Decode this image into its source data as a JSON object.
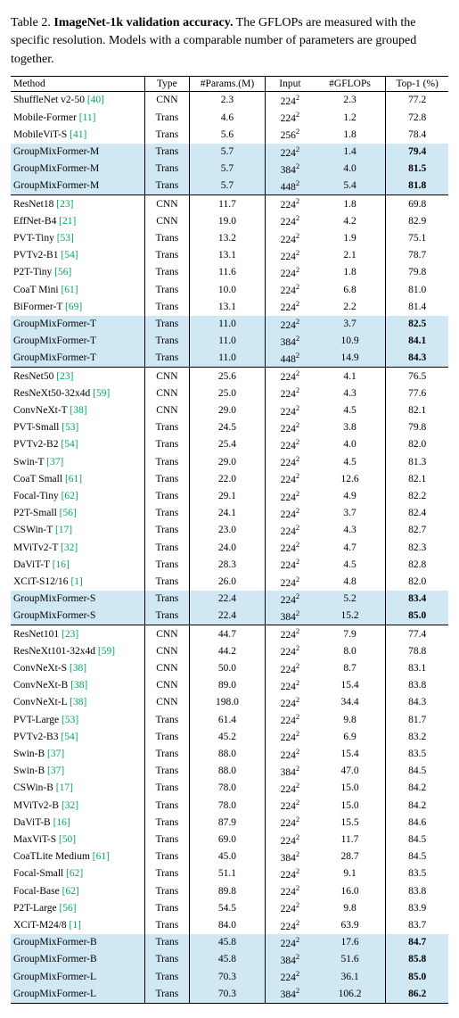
{
  "caption": {
    "table_num": "Table 2.",
    "title": "ImageNet-1k validation accuracy.",
    "rest": " The GFLOPs are measured with the specific resolution. Models with a comparable number of parameters are grouped together."
  },
  "colors": {
    "highlight_bg": "#cfe8f3",
    "cite_color": "#00aa55",
    "rule_color": "#000000",
    "background": "#ffffff",
    "text": "#000000"
  },
  "fonts": {
    "caption_size_pt": 10.5,
    "table_size_pt": 8.5,
    "family": "Times New Roman"
  },
  "headers": [
    "Method",
    "Type",
    "#Params.(M)",
    "Input",
    "#GFLOPs",
    "Top-1 (%)"
  ],
  "rows": [
    {
      "g": 1,
      "hl": 0,
      "b": 0,
      "method": "ShuffleNet v2-50",
      "cite": "[40]",
      "type": "CNN",
      "params": "2.3",
      "input": "224",
      "gflops": "2.3",
      "top1": "77.2"
    },
    {
      "g": 0,
      "hl": 0,
      "b": 0,
      "method": "Mobile-Former",
      "cite": "[11]",
      "type": "Trans",
      "params": "4.6",
      "input": "224",
      "gflops": "1.2",
      "top1": "72.8"
    },
    {
      "g": 0,
      "hl": 0,
      "b": 0,
      "method": "MobileViT-S",
      "cite": "[41]",
      "type": "Trans",
      "params": "5.6",
      "input": "256",
      "gflops": "1.8",
      "top1": "78.4"
    },
    {
      "g": 0,
      "hl": 1,
      "b": 1,
      "method": "GroupMixFormer-M",
      "cite": "",
      "type": "Trans",
      "params": "5.7",
      "input": "224",
      "gflops": "1.4",
      "top1": "79.4"
    },
    {
      "g": 0,
      "hl": 1,
      "b": 1,
      "method": "GroupMixFormer-M",
      "cite": "",
      "type": "Trans",
      "params": "5.7",
      "input": "384",
      "gflops": "4.0",
      "top1": "81.5"
    },
    {
      "g": 0,
      "hl": 1,
      "b": 1,
      "method": "GroupMixFormer-M",
      "cite": "",
      "type": "Trans",
      "params": "5.7",
      "input": "448",
      "gflops": "5.4",
      "top1": "81.8"
    },
    {
      "g": 1,
      "hl": 0,
      "b": 0,
      "method": "ResNet18",
      "cite": "[23]",
      "type": "CNN",
      "params": "11.7",
      "input": "224",
      "gflops": "1.8",
      "top1": "69.8"
    },
    {
      "g": 0,
      "hl": 0,
      "b": 0,
      "method": "EffNet-B4",
      "cite": "[21]",
      "type": "CNN",
      "params": "19.0",
      "input": "224",
      "gflops": "4.2",
      "top1": "82.9"
    },
    {
      "g": 0,
      "hl": 0,
      "b": 0,
      "method": "PVT-Tiny",
      "cite": "[53]",
      "type": "Trans",
      "params": "13.2",
      "input": "224",
      "gflops": "1.9",
      "top1": "75.1"
    },
    {
      "g": 0,
      "hl": 0,
      "b": 0,
      "method": "PVTv2-B1",
      "cite": "[54]",
      "type": "Trans",
      "params": "13.1",
      "input": "224",
      "gflops": "2.1",
      "top1": "78.7"
    },
    {
      "g": 0,
      "hl": 0,
      "b": 0,
      "method": "P2T-Tiny",
      "cite": "[56]",
      "type": "Trans",
      "params": "11.6",
      "input": "224",
      "gflops": "1.8",
      "top1": "79.8"
    },
    {
      "g": 0,
      "hl": 0,
      "b": 0,
      "method": "CoaT Mini",
      "cite": "[61]",
      "type": "Trans",
      "params": "10.0",
      "input": "224",
      "gflops": "6.8",
      "top1": "81.0"
    },
    {
      "g": 0,
      "hl": 0,
      "b": 0,
      "method": "BiFormer-T",
      "cite": "[69]",
      "type": "Trans",
      "params": "13.1",
      "input": "224",
      "gflops": "2.2",
      "top1": "81.4"
    },
    {
      "g": 0,
      "hl": 1,
      "b": 1,
      "method": "GroupMixFormer-T",
      "cite": "",
      "type": "Trans",
      "params": "11.0",
      "input": "224",
      "gflops": "3.7",
      "top1": "82.5"
    },
    {
      "g": 0,
      "hl": 1,
      "b": 1,
      "method": "GroupMixFormer-T",
      "cite": "",
      "type": "Trans",
      "params": "11.0",
      "input": "384",
      "gflops": "10.9",
      "top1": "84.1"
    },
    {
      "g": 0,
      "hl": 1,
      "b": 1,
      "method": "GroupMixFormer-T",
      "cite": "",
      "type": "Trans",
      "params": "11.0",
      "input": "448",
      "gflops": "14.9",
      "top1": "84.3"
    },
    {
      "g": 1,
      "hl": 0,
      "b": 0,
      "method": "ResNet50",
      "cite": "[23]",
      "type": "CNN",
      "params": "25.6",
      "input": "224",
      "gflops": "4.1",
      "top1": "76.5"
    },
    {
      "g": 0,
      "hl": 0,
      "b": 0,
      "method": "ResNeXt50-32x4d",
      "cite": "[59]",
      "type": "CNN",
      "params": "25.0",
      "input": "224",
      "gflops": "4.3",
      "top1": "77.6"
    },
    {
      "g": 0,
      "hl": 0,
      "b": 0,
      "method": "ConvNeXt-T",
      "cite": "[38]",
      "type": "CNN",
      "params": "29.0",
      "input": "224",
      "gflops": "4.5",
      "top1": "82.1"
    },
    {
      "g": 0,
      "hl": 0,
      "b": 0,
      "method": "PVT-Small",
      "cite": "[53]",
      "type": "Trans",
      "params": "24.5",
      "input": "224",
      "gflops": "3.8",
      "top1": "79.8"
    },
    {
      "g": 0,
      "hl": 0,
      "b": 0,
      "method": "PVTv2-B2",
      "cite": "[54]",
      "type": "Trans",
      "params": "25.4",
      "input": "224",
      "gflops": "4.0",
      "top1": "82.0"
    },
    {
      "g": 0,
      "hl": 0,
      "b": 0,
      "method": "Swin-T",
      "cite": "[37]",
      "type": "Trans",
      "params": "29.0",
      "input": "224",
      "gflops": "4.5",
      "top1": "81.3"
    },
    {
      "g": 0,
      "hl": 0,
      "b": 0,
      "method": "CoaT Small",
      "cite": "[61]",
      "type": "Trans",
      "params": "22.0",
      "input": "224",
      "gflops": "12.6",
      "top1": "82.1"
    },
    {
      "g": 0,
      "hl": 0,
      "b": 0,
      "method": "Focal-Tiny",
      "cite": "[62]",
      "type": "Trans",
      "params": "29.1",
      "input": "224",
      "gflops": "4.9",
      "top1": "82.2"
    },
    {
      "g": 0,
      "hl": 0,
      "b": 0,
      "method": "P2T-Small",
      "cite": "[56]",
      "type": "Trans",
      "params": "24.1",
      "input": "224",
      "gflops": "3.7",
      "top1": "82.4"
    },
    {
      "g": 0,
      "hl": 0,
      "b": 0,
      "method": "CSWin-T",
      "cite": "[17]",
      "type": "Trans",
      "params": "23.0",
      "input": "224",
      "gflops": "4.3",
      "top1": "82.7"
    },
    {
      "g": 0,
      "hl": 0,
      "b": 0,
      "method": "MViTv2-T",
      "cite": "[32]",
      "type": "Trans",
      "params": "24.0",
      "input": "224",
      "gflops": "4.7",
      "top1": "82.3"
    },
    {
      "g": 0,
      "hl": 0,
      "b": 0,
      "method": "DaViT-T",
      "cite": "[16]",
      "type": "Trans",
      "params": "28.3",
      "input": "224",
      "gflops": "4.5",
      "top1": "82.8"
    },
    {
      "g": 0,
      "hl": 0,
      "b": 0,
      "method": "XCiT-S12/16",
      "cite": "[1]",
      "type": "Trans",
      "params": "26.0",
      "input": "224",
      "gflops": "4.8",
      "top1": "82.0"
    },
    {
      "g": 0,
      "hl": 1,
      "b": 1,
      "method": "GroupMixFormer-S",
      "cite": "",
      "type": "Trans",
      "params": "22.4",
      "input": "224",
      "gflops": "5.2",
      "top1": "83.4"
    },
    {
      "g": 0,
      "hl": 1,
      "b": 1,
      "method": "GroupMixFormer-S",
      "cite": "",
      "type": "Trans",
      "params": "22.4",
      "input": "384",
      "gflops": "15.2",
      "top1": "85.0"
    },
    {
      "g": 1,
      "hl": 0,
      "b": 0,
      "method": "ResNet101",
      "cite": "[23]",
      "type": "CNN",
      "params": "44.7",
      "input": "224",
      "gflops": "7.9",
      "top1": "77.4"
    },
    {
      "g": 0,
      "hl": 0,
      "b": 0,
      "method": "ResNeXt101-32x4d",
      "cite": "[59]",
      "type": "CNN",
      "params": "44.2",
      "input": "224",
      "gflops": "8.0",
      "top1": "78.8"
    },
    {
      "g": 0,
      "hl": 0,
      "b": 0,
      "method": "ConvNeXt-S",
      "cite": "[38]",
      "type": "CNN",
      "params": "50.0",
      "input": "224",
      "gflops": "8.7",
      "top1": "83.1"
    },
    {
      "g": 0,
      "hl": 0,
      "b": 0,
      "method": "ConvNeXt-B",
      "cite": "[38]",
      "type": "CNN",
      "params": "89.0",
      "input": "224",
      "gflops": "15.4",
      "top1": "83.8"
    },
    {
      "g": 0,
      "hl": 0,
      "b": 0,
      "method": "ConvNeXt-L",
      "cite": "[38]",
      "type": "CNN",
      "params": "198.0",
      "input": "224",
      "gflops": "34.4",
      "top1": "84.3"
    },
    {
      "g": 0,
      "hl": 0,
      "b": 0,
      "method": "PVT-Large",
      "cite": "[53]",
      "type": "Trans",
      "params": "61.4",
      "input": "224",
      "gflops": "9.8",
      "top1": "81.7"
    },
    {
      "g": 0,
      "hl": 0,
      "b": 0,
      "method": "PVTv2-B3",
      "cite": "[54]",
      "type": "Trans",
      "params": "45.2",
      "input": "224",
      "gflops": "6.9",
      "top1": "83.2"
    },
    {
      "g": 0,
      "hl": 0,
      "b": 0,
      "method": "Swin-B",
      "cite": "[37]",
      "type": "Trans",
      "params": "88.0",
      "input": "224",
      "gflops": "15.4",
      "top1": "83.5"
    },
    {
      "g": 0,
      "hl": 0,
      "b": 0,
      "method": "Swin-B",
      "cite": "[37]",
      "type": "Trans",
      "params": "88.0",
      "input": "384",
      "gflops": "47.0",
      "top1": "84.5"
    },
    {
      "g": 0,
      "hl": 0,
      "b": 0,
      "method": "CSWin-B",
      "cite": "[17]",
      "type": "Trans",
      "params": "78.0",
      "input": "224",
      "gflops": "15.0",
      "top1": "84.2"
    },
    {
      "g": 0,
      "hl": 0,
      "b": 0,
      "method": "MViTv2-B",
      "cite": "[32]",
      "type": "Trans",
      "params": "78.0",
      "input": "224",
      "gflops": "15.0",
      "top1": "84.2"
    },
    {
      "g": 0,
      "hl": 0,
      "b": 0,
      "method": "DaViT-B",
      "cite": "[16]",
      "type": "Trans",
      "params": "87.9",
      "input": "224",
      "gflops": "15.5",
      "top1": "84.6"
    },
    {
      "g": 0,
      "hl": 0,
      "b": 0,
      "method": "MaxViT-S",
      "cite": "[50]",
      "type": "Trans",
      "params": "69.0",
      "input": "224",
      "gflops": "11.7",
      "top1": "84.5"
    },
    {
      "g": 0,
      "hl": 0,
      "b": 0,
      "method": "CoaTLite Medium",
      "cite": "[61]",
      "type": "Trans",
      "params": "45.0",
      "input": "384",
      "gflops": "28.7",
      "top1": "84.5"
    },
    {
      "g": 0,
      "hl": 0,
      "b": 0,
      "method": "Focal-Small",
      "cite": "[62]",
      "type": "Trans",
      "params": "51.1",
      "input": "224",
      "gflops": "9.1",
      "top1": "83.5"
    },
    {
      "g": 0,
      "hl": 0,
      "b": 0,
      "method": "Focal-Base",
      "cite": "[62]",
      "type": "Trans",
      "params": "89.8",
      "input": "224",
      "gflops": "16.0",
      "top1": "83.8"
    },
    {
      "g": 0,
      "hl": 0,
      "b": 0,
      "method": "P2T-Large",
      "cite": "[56]",
      "type": "Trans",
      "params": "54.5",
      "input": "224",
      "gflops": "9.8",
      "top1": "83.9"
    },
    {
      "g": 0,
      "hl": 0,
      "b": 0,
      "method": "XCiT-M24/8",
      "cite": "[1]",
      "type": "Trans",
      "params": "84.0",
      "input": "224",
      "gflops": "63.9",
      "top1": "83.7"
    },
    {
      "g": 0,
      "hl": 1,
      "b": 1,
      "method": "GroupMixFormer-B",
      "cite": "",
      "type": "Trans",
      "params": "45.8",
      "input": "224",
      "gflops": "17.6",
      "top1": "84.7"
    },
    {
      "g": 0,
      "hl": 1,
      "b": 1,
      "method": "GroupMixFormer-B",
      "cite": "",
      "type": "Trans",
      "params": "45.8",
      "input": "384",
      "gflops": "51.6",
      "top1": "85.8"
    },
    {
      "g": 0,
      "hl": 1,
      "b": 1,
      "method": "GroupMixFormer-L",
      "cite": "",
      "type": "Trans",
      "params": "70.3",
      "input": "224",
      "gflops": "36.1",
      "top1": "85.0"
    },
    {
      "g": 0,
      "hl": 1,
      "b": 1,
      "method": "GroupMixFormer-L",
      "cite": "",
      "type": "Trans",
      "params": "70.3",
      "input": "384",
      "gflops": "106.2",
      "top1": "86.2"
    }
  ]
}
